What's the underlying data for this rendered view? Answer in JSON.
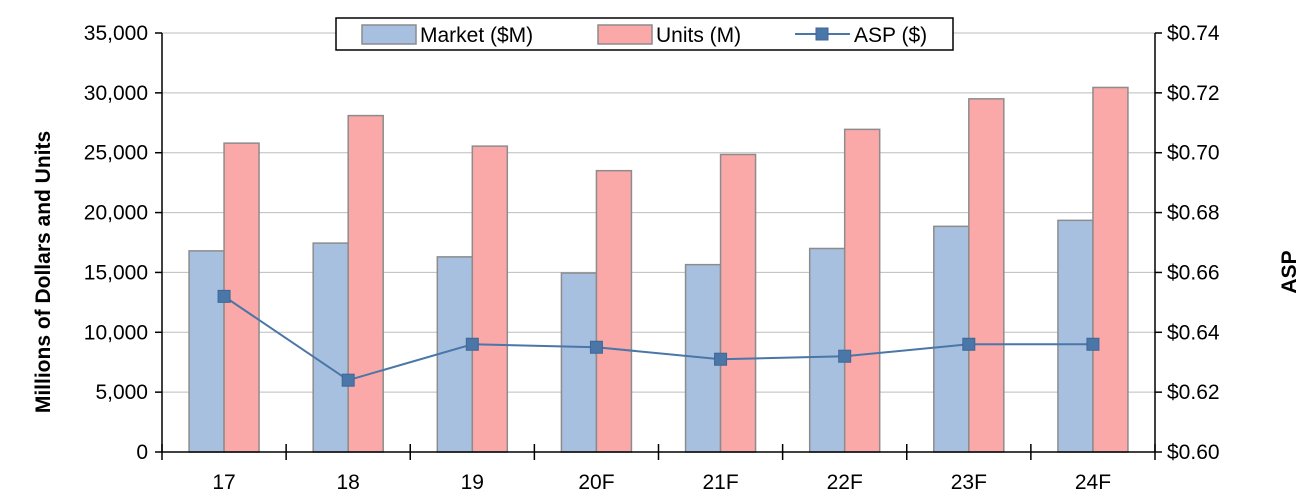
{
  "chart_data": {
    "type": "bar",
    "categories": [
      "17",
      "18",
      "19",
      "20F",
      "21F",
      "22F",
      "23F",
      "24F"
    ],
    "series": [
      {
        "name": "Market ($M)",
        "kind": "bar",
        "axis": "left",
        "color": "#a7c0df",
        "values": [
          16800,
          17450,
          16300,
          14950,
          15650,
          17000,
          18850,
          19350
        ]
      },
      {
        "name": "Units (M)",
        "kind": "bar",
        "axis": "left",
        "color": "#fba8a8",
        "values": [
          25800,
          28100,
          25550,
          23500,
          24850,
          26950,
          29500,
          30450
        ]
      },
      {
        "name": "ASP ($)",
        "kind": "line",
        "axis": "right",
        "color": "#4a76a8",
        "marker": "square",
        "values": [
          0.652,
          0.624,
          0.636,
          0.635,
          0.631,
          0.632,
          0.636,
          0.636
        ]
      }
    ],
    "ylabel": "Millions of Dollars and Units",
    "y2label": "ASP",
    "ylim": [
      0,
      35000
    ],
    "y2lim": [
      0.6,
      0.74
    ],
    "yticks": [
      "0",
      "5,000",
      "10,000",
      "15,000",
      "20,000",
      "25,000",
      "30,000",
      "35,000"
    ],
    "y2ticks": [
      "$0.60",
      "$0.62",
      "$0.64",
      "$0.66",
      "$0.68",
      "$0.70",
      "$0.72",
      "$0.74"
    ],
    "grid": "horizontal",
    "legend": "top-center"
  }
}
